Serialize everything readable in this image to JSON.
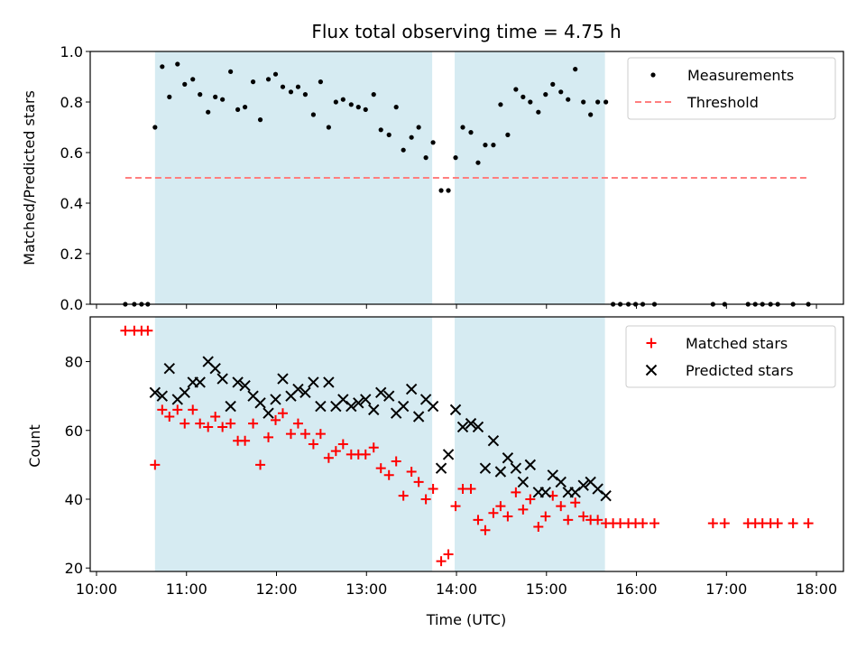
{
  "chart_data": {
    "title": "Flux total observing time = 4.75 h",
    "xlabel": "Time (UTC)",
    "x_ticks": [
      "10:00",
      "11:00",
      "12:00",
      "13:00",
      "14:00",
      "15:00",
      "16:00",
      "17:00",
      "18:00"
    ],
    "x_tick_hours": [
      10,
      11,
      12,
      13,
      14,
      15,
      16,
      17,
      18
    ],
    "xlim_hours": [
      9.93,
      18.3
    ],
    "shaded_intervals_hours": [
      [
        10.65,
        13.73
      ],
      [
        13.98,
        15.65
      ]
    ],
    "shade_color": "#add8e6",
    "panels": [
      {
        "type": "scatter",
        "ylabel": "Matched/Predicted stars",
        "ylim": [
          0,
          1.0
        ],
        "y_ticks": [
          0.0,
          0.2,
          0.4,
          0.6,
          0.8,
          1.0
        ],
        "y_tick_labels": [
          "0.0",
          "0.2",
          "0.4",
          "0.6",
          "0.8",
          "1.0"
        ],
        "legend_position": "top-right",
        "series": [
          {
            "name": "Measurements",
            "marker": "dot",
            "color": "#000000",
            "x": [
              10.32,
              10.42,
              10.5,
              10.57,
              10.65,
              10.73,
              10.81,
              10.9,
              10.98,
              11.07,
              11.15,
              11.24,
              11.32,
              11.4,
              11.49,
              11.57,
              11.65,
              11.74,
              11.82,
              11.91,
              11.99,
              12.07,
              12.16,
              12.24,
              12.32,
              12.41,
              12.49,
              12.58,
              12.66,
              12.74,
              12.83,
              12.91,
              12.99,
              13.08,
              13.16,
              13.25,
              13.33,
              13.41,
              13.5,
              13.58,
              13.66,
              13.74,
              13.83,
              13.91,
              13.99,
              14.07,
              14.16,
              14.24,
              14.32,
              14.41,
              14.49,
              14.57,
              14.66,
              14.74,
              14.82,
              14.91,
              14.99,
              15.07,
              15.16,
              15.24,
              15.32,
              15.41,
              15.49,
              15.57,
              15.66,
              15.74,
              15.82,
              15.91,
              15.99,
              16.07,
              16.2,
              16.85,
              16.98,
              17.24,
              17.32,
              17.4,
              17.49,
              17.57,
              17.74,
              17.91
            ],
            "y": [
              0,
              0,
              0,
              0,
              0.7,
              0.94,
              0.82,
              0.95,
              0.87,
              0.89,
              0.83,
              0.76,
              0.82,
              0.81,
              0.92,
              0.77,
              0.78,
              0.88,
              0.73,
              0.89,
              0.91,
              0.86,
              0.84,
              0.86,
              0.83,
              0.75,
              0.88,
              0.7,
              0.8,
              0.81,
              0.79,
              0.78,
              0.77,
              0.83,
              0.69,
              0.67,
              0.78,
              0.61,
              0.66,
              0.7,
              0.58,
              0.64,
              0.45,
              0.45,
              0.58,
              0.7,
              0.68,
              0.56,
              0.63,
              0.63,
              0.79,
              0.67,
              0.85,
              0.82,
              0.8,
              0.76,
              0.83,
              0.87,
              0.84,
              0.81,
              0.93,
              0.8,
              0.75,
              0.8,
              0.8,
              0,
              0,
              0,
              0,
              0,
              0,
              0,
              0,
              0,
              0,
              0,
              0,
              0,
              0,
              0
            ]
          },
          {
            "name": "Threshold",
            "style": "dashed",
            "color": "#ff7f7f",
            "x": [
              10.32,
              17.91
            ],
            "y": [
              0.5,
              0.5
            ]
          }
        ]
      },
      {
        "type": "scatter",
        "ylabel": "Count",
        "ylim": [
          19,
          93
        ],
        "y_ticks": [
          20,
          40,
          60,
          80
        ],
        "y_tick_labels": [
          "20",
          "40",
          "60",
          "80"
        ],
        "legend_position": "top-right",
        "series": [
          {
            "name": "Matched stars",
            "marker": "plus",
            "color": "#ff0000",
            "x": [
              10.32,
              10.42,
              10.5,
              10.57,
              10.65,
              10.73,
              10.81,
              10.9,
              10.98,
              11.07,
              11.15,
              11.24,
              11.32,
              11.4,
              11.49,
              11.57,
              11.65,
              11.74,
              11.82,
              11.91,
              11.99,
              12.07,
              12.16,
              12.24,
              12.32,
              12.41,
              12.49,
              12.58,
              12.66,
              12.74,
              12.83,
              12.91,
              12.99,
              13.08,
              13.16,
              13.25,
              13.33,
              13.41,
              13.5,
              13.58,
              13.66,
              13.74,
              13.83,
              13.91,
              13.99,
              14.07,
              14.16,
              14.24,
              14.32,
              14.41,
              14.49,
              14.57,
              14.66,
              14.74,
              14.82,
              14.91,
              14.99,
              15.07,
              15.16,
              15.24,
              15.32,
              15.41,
              15.49,
              15.57,
              15.66,
              15.74,
              15.82,
              15.91,
              15.99,
              16.07,
              16.2,
              16.85,
              16.98,
              17.24,
              17.32,
              17.4,
              17.49,
              17.57,
              17.74,
              17.91
            ],
            "y": [
              89,
              89,
              89,
              89,
              50,
              66,
              64,
              66,
              62,
              66,
              62,
              61,
              64,
              61,
              62,
              57,
              57,
              62,
              50,
              58,
              63,
              65,
              59,
              62,
              59,
              56,
              59,
              52,
              54,
              56,
              53,
              53,
              53,
              55,
              49,
              47,
              51,
              41,
              48,
              45,
              40,
              43,
              22,
              24,
              38,
              43,
              43,
              34,
              31,
              36,
              38,
              35,
              42,
              37,
              40,
              32,
              35,
              41,
              38,
              34,
              39,
              35,
              34,
              34,
              33,
              33,
              33,
              33,
              33,
              33,
              33,
              33,
              33,
              33,
              33,
              33,
              33,
              33,
              33,
              33
            ]
          },
          {
            "name": "Predicted stars",
            "marker": "x",
            "color": "#000000",
            "x": [
              10.65,
              10.73,
              10.81,
              10.9,
              10.98,
              11.07,
              11.15,
              11.24,
              11.32,
              11.4,
              11.49,
              11.57,
              11.65,
              11.74,
              11.82,
              11.91,
              11.99,
              12.07,
              12.16,
              12.24,
              12.32,
              12.41,
              12.49,
              12.58,
              12.66,
              12.74,
              12.83,
              12.91,
              12.99,
              13.08,
              13.16,
              13.25,
              13.33,
              13.41,
              13.5,
              13.58,
              13.66,
              13.74,
              13.83,
              13.91,
              13.99,
              14.07,
              14.16,
              14.24,
              14.32,
              14.41,
              14.49,
              14.57,
              14.66,
              14.74,
              14.82,
              14.91,
              14.99,
              15.07,
              15.16,
              15.24,
              15.32,
              15.41,
              15.49,
              15.57,
              15.66
            ],
            "y": [
              71,
              70,
              78,
              69,
              71,
              74,
              74,
              80,
              78,
              75,
              67,
              74,
              73,
              70,
              68,
              65,
              69,
              75,
              70,
              72,
              71,
              74,
              67,
              74,
              67,
              69,
              67,
              68,
              69,
              66,
              71,
              70,
              65,
              67,
              72,
              64,
              69,
              67,
              49,
              53,
              66,
              61,
              62,
              61,
              49,
              57,
              48,
              52,
              49,
              45,
              50,
              42,
              42,
              47,
              45,
              42,
              42,
              44,
              45,
              43,
              41
            ]
          }
        ]
      }
    ]
  }
}
